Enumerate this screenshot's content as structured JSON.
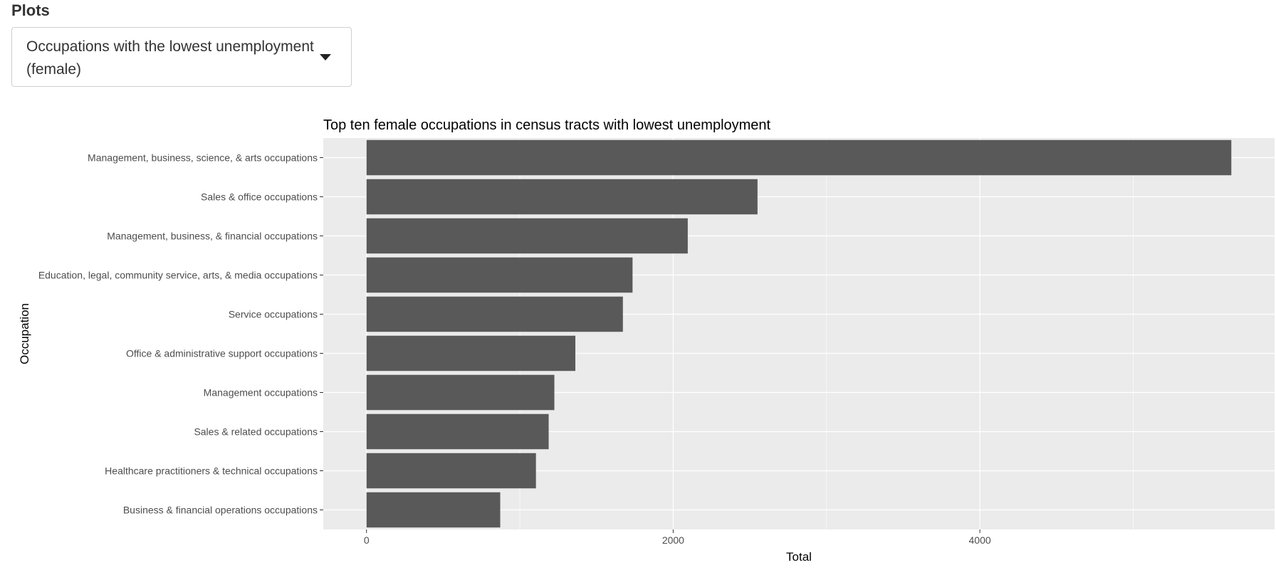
{
  "section": {
    "label": "Plots"
  },
  "select": {
    "selected": "Occupations with the lowest unemployment (female)",
    "caret_icon": "chevron-down-icon"
  },
  "chart_data": {
    "type": "bar",
    "orientation": "horizontal",
    "title": "Top ten female occupations in census tracts with lowest unemployment",
    "xlabel": "Total",
    "ylabel": "Occupation",
    "categories": [
      "Management, business, science, & arts occupations",
      "Sales & office occupations",
      "Management, business, & financial occupations",
      "Education, legal, community service, arts, & media occupations",
      "Service occupations",
      "Office & administrative support occupations",
      "Management occupations",
      "Sales & related occupations",
      "Healthcare practitioners & technical occupations",
      "Business & financial operations occupations"
    ],
    "values": [
      5640,
      2550,
      2095,
      1735,
      1672,
      1362,
      1225,
      1188,
      1105,
      872
    ],
    "xlim": [
      -282,
      5922
    ],
    "xticks": [
      0,
      2000,
      4000
    ],
    "xtick_labels": [
      "0",
      "2000",
      "4000"
    ],
    "grid": true,
    "colors": {
      "bar": "#595959",
      "panel": "#ebebeb",
      "grid": "#ffffff"
    }
  }
}
